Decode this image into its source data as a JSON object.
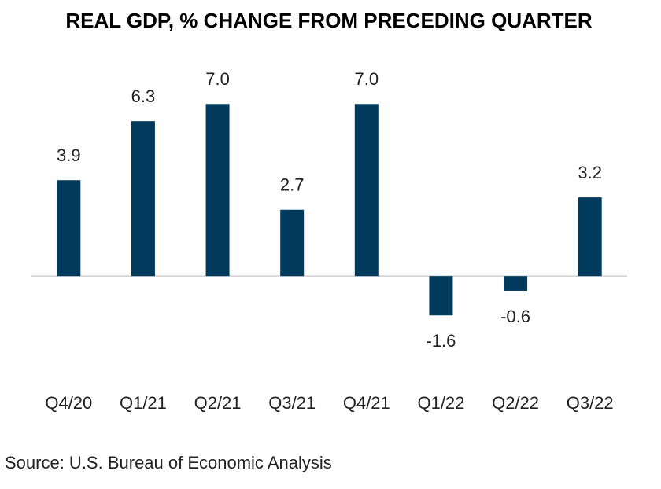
{
  "chart_data": {
    "type": "bar",
    "title": "REAL GDP, % CHANGE FROM PRECEDING QUARTER",
    "categories": [
      "Q4/20",
      "Q1/21",
      "Q2/21",
      "Q3/21",
      "Q4/21",
      "Q1/22",
      "Q2/22",
      "Q3/22"
    ],
    "values": [
      3.9,
      6.3,
      7.0,
      2.7,
      7.0,
      -1.6,
      -0.6,
      3.2
    ],
    "value_labels": [
      "3.9",
      "6.3",
      "7.0",
      "2.7",
      "7.0",
      "-1.6",
      "-0.6",
      "3.2"
    ],
    "color": "#003a5d",
    "ylim": [
      -3,
      8
    ],
    "source": "Source: U.S. Bureau of Economic Analysis"
  }
}
